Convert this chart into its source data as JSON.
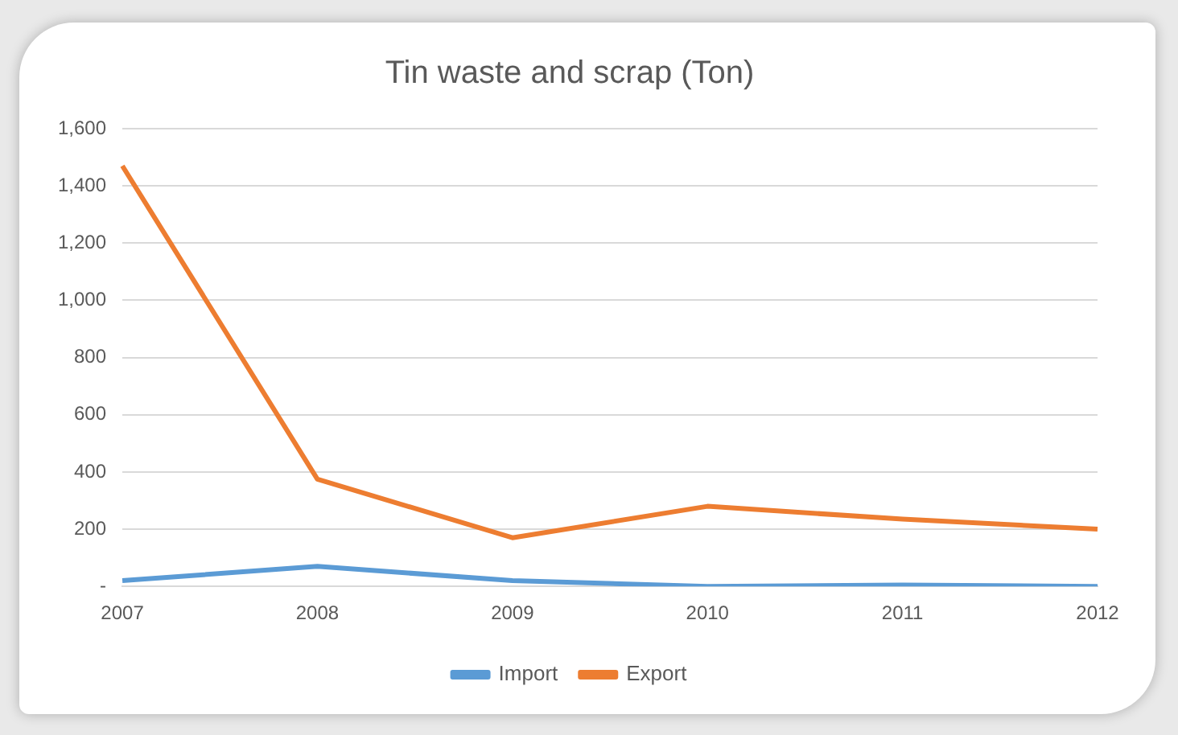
{
  "chart_data": {
    "type": "line",
    "title": "Tin waste and scrap (Ton)",
    "categories": [
      "2007",
      "2008",
      "2009",
      "2010",
      "2011",
      "2012"
    ],
    "series": [
      {
        "name": "Import",
        "color": "#5b9bd5",
        "values": [
          20,
          70,
          20,
          0,
          5,
          0
        ]
      },
      {
        "name": "Export",
        "color": "#ed7d31",
        "values": [
          1470,
          375,
          170,
          280,
          235,
          200
        ]
      }
    ],
    "ylim": [
      0,
      1600
    ],
    "yticks": [
      {
        "value": 0,
        "label": "-"
      },
      200,
      400,
      600,
      800,
      {
        "value": 1000,
        "label": "1,000"
      },
      {
        "value": 1200,
        "label": "1,200"
      },
      {
        "value": 1400,
        "label": "1,400"
      },
      {
        "value": 1600,
        "label": "1,600"
      }
    ],
    "grid": "y",
    "legend": "bottom",
    "marker": "none",
    "line_style": "solid"
  }
}
